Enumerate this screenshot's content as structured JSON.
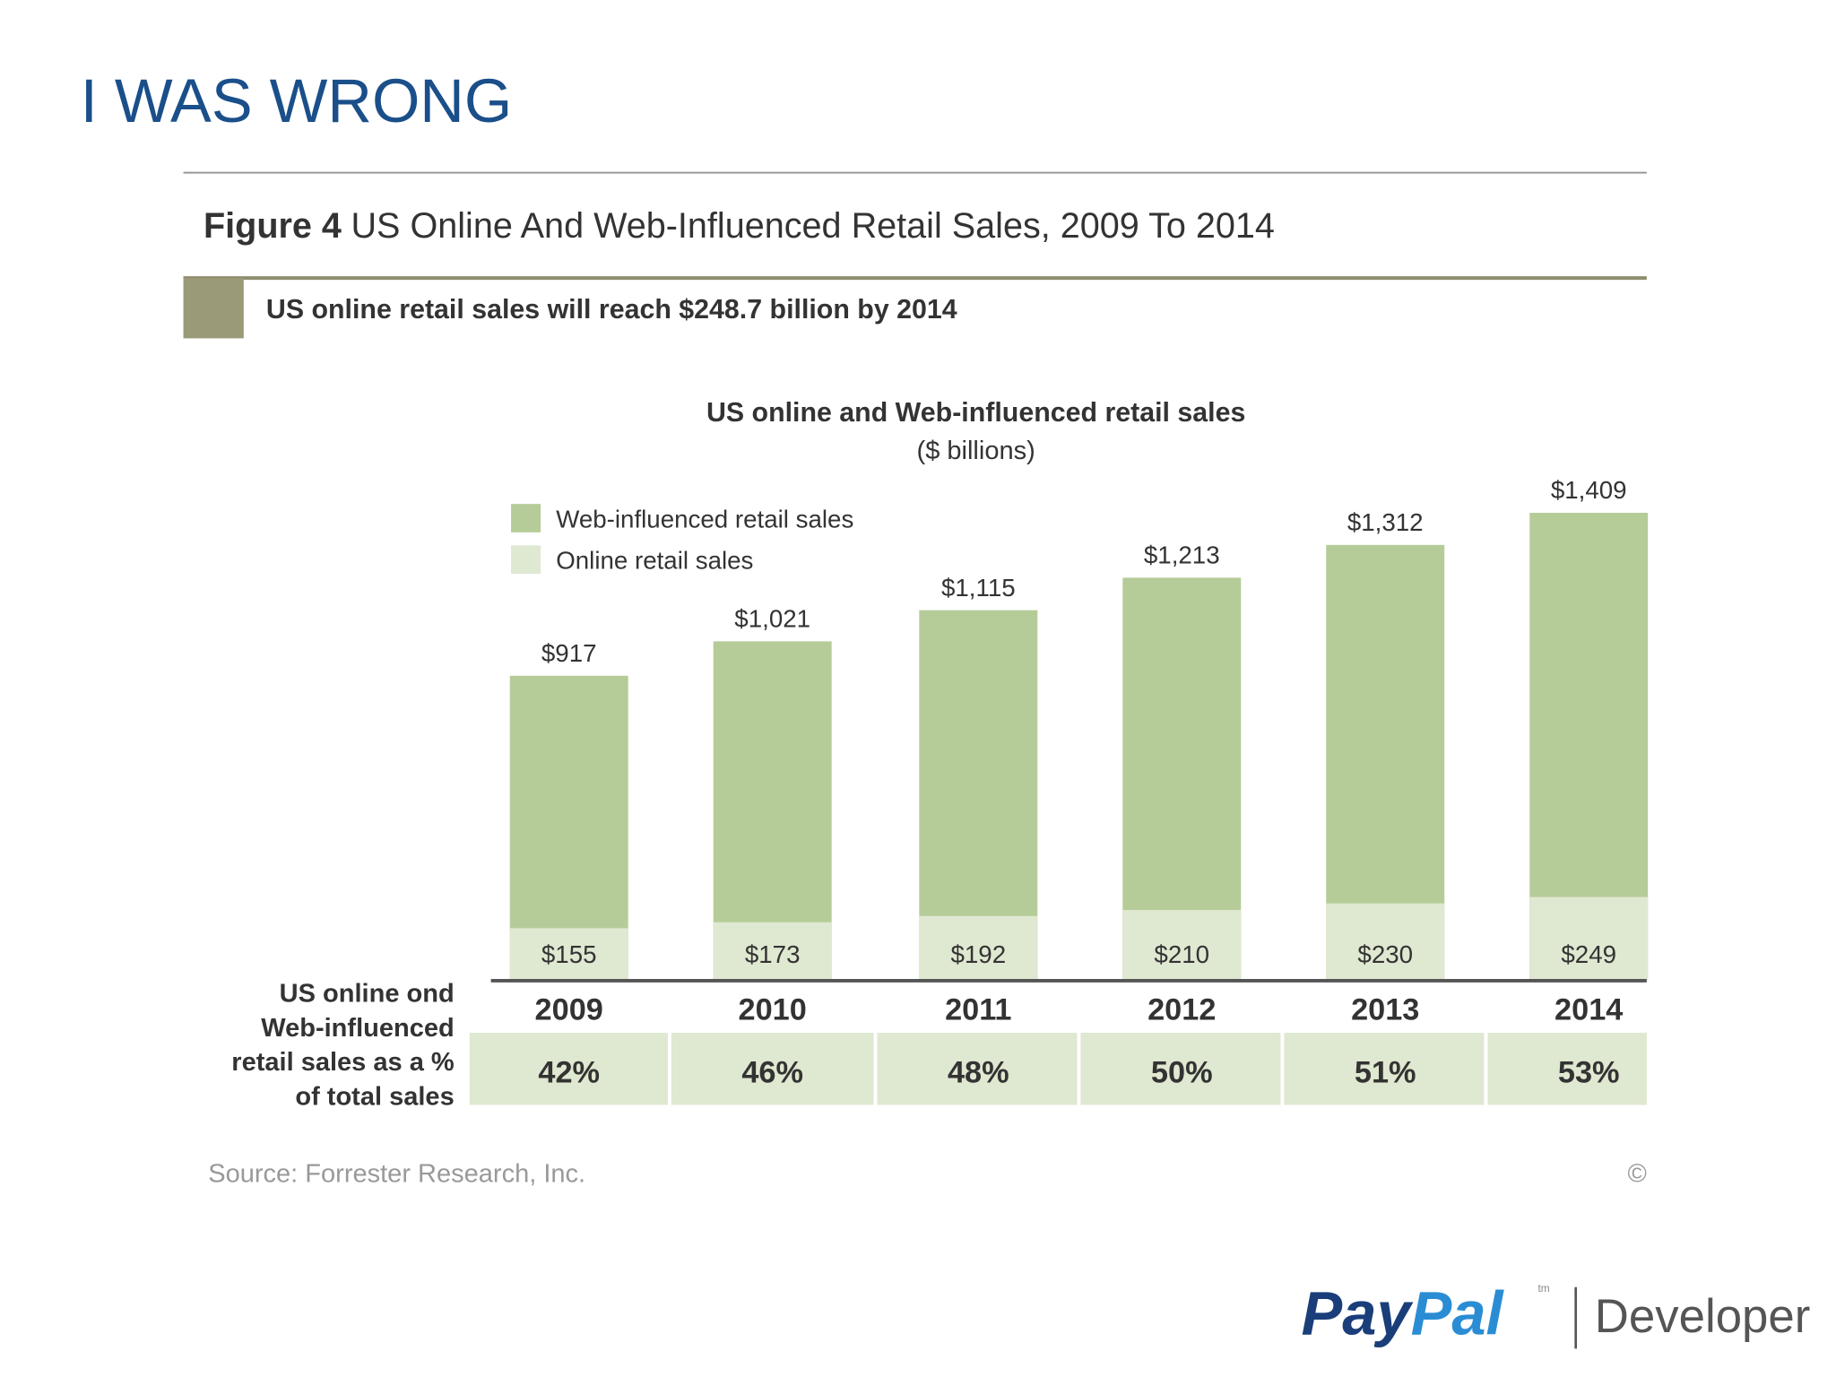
{
  "slide": {
    "title": "I WAS WRONG",
    "logo": {
      "brand_1": "Pay",
      "brand_2": "Pal",
      "tm": "tm",
      "product": "Developer"
    }
  },
  "chart_data": {
    "type": "bar",
    "figure_label": "Figure 4",
    "figure_title": "US Online And Web-Influenced Retail Sales, 2009 To 2014",
    "subtitle": "US online retail sales will reach $248.7 billion by 2014",
    "title": "US online and Web-influenced retail sales",
    "unit": "($ billions)",
    "categories": [
      "2009",
      "2010",
      "2011",
      "2012",
      "2013",
      "2014"
    ],
    "overlap": true,
    "series": [
      {
        "name": "Web-influenced retail sales",
        "color": "#b5cc98",
        "values": [
          917,
          1021,
          1115,
          1213,
          1312,
          1409
        ],
        "value_labels": [
          "$917",
          "$1,021",
          "$1,115",
          "$1,213",
          "$1,312",
          "$1,409"
        ]
      },
      {
        "name": "Online retail sales",
        "color": "#dfe8d0",
        "values": [
          155,
          173,
          192,
          210,
          230,
          249
        ],
        "value_labels": [
          "$155",
          "$173",
          "$192",
          "$210",
          "$230",
          "$249"
        ]
      }
    ],
    "share": {
      "label_lines": [
        "US online ond",
        "Web-influenced",
        "retail sales as a %",
        "of total sales"
      ],
      "values": [
        42,
        46,
        48,
        50,
        51,
        53
      ],
      "value_labels": [
        "42%",
        "46%",
        "48%",
        "50%",
        "51%",
        "53%"
      ]
    },
    "source": "Source: Forrester Research, Inc.",
    "copyright": "©"
  }
}
